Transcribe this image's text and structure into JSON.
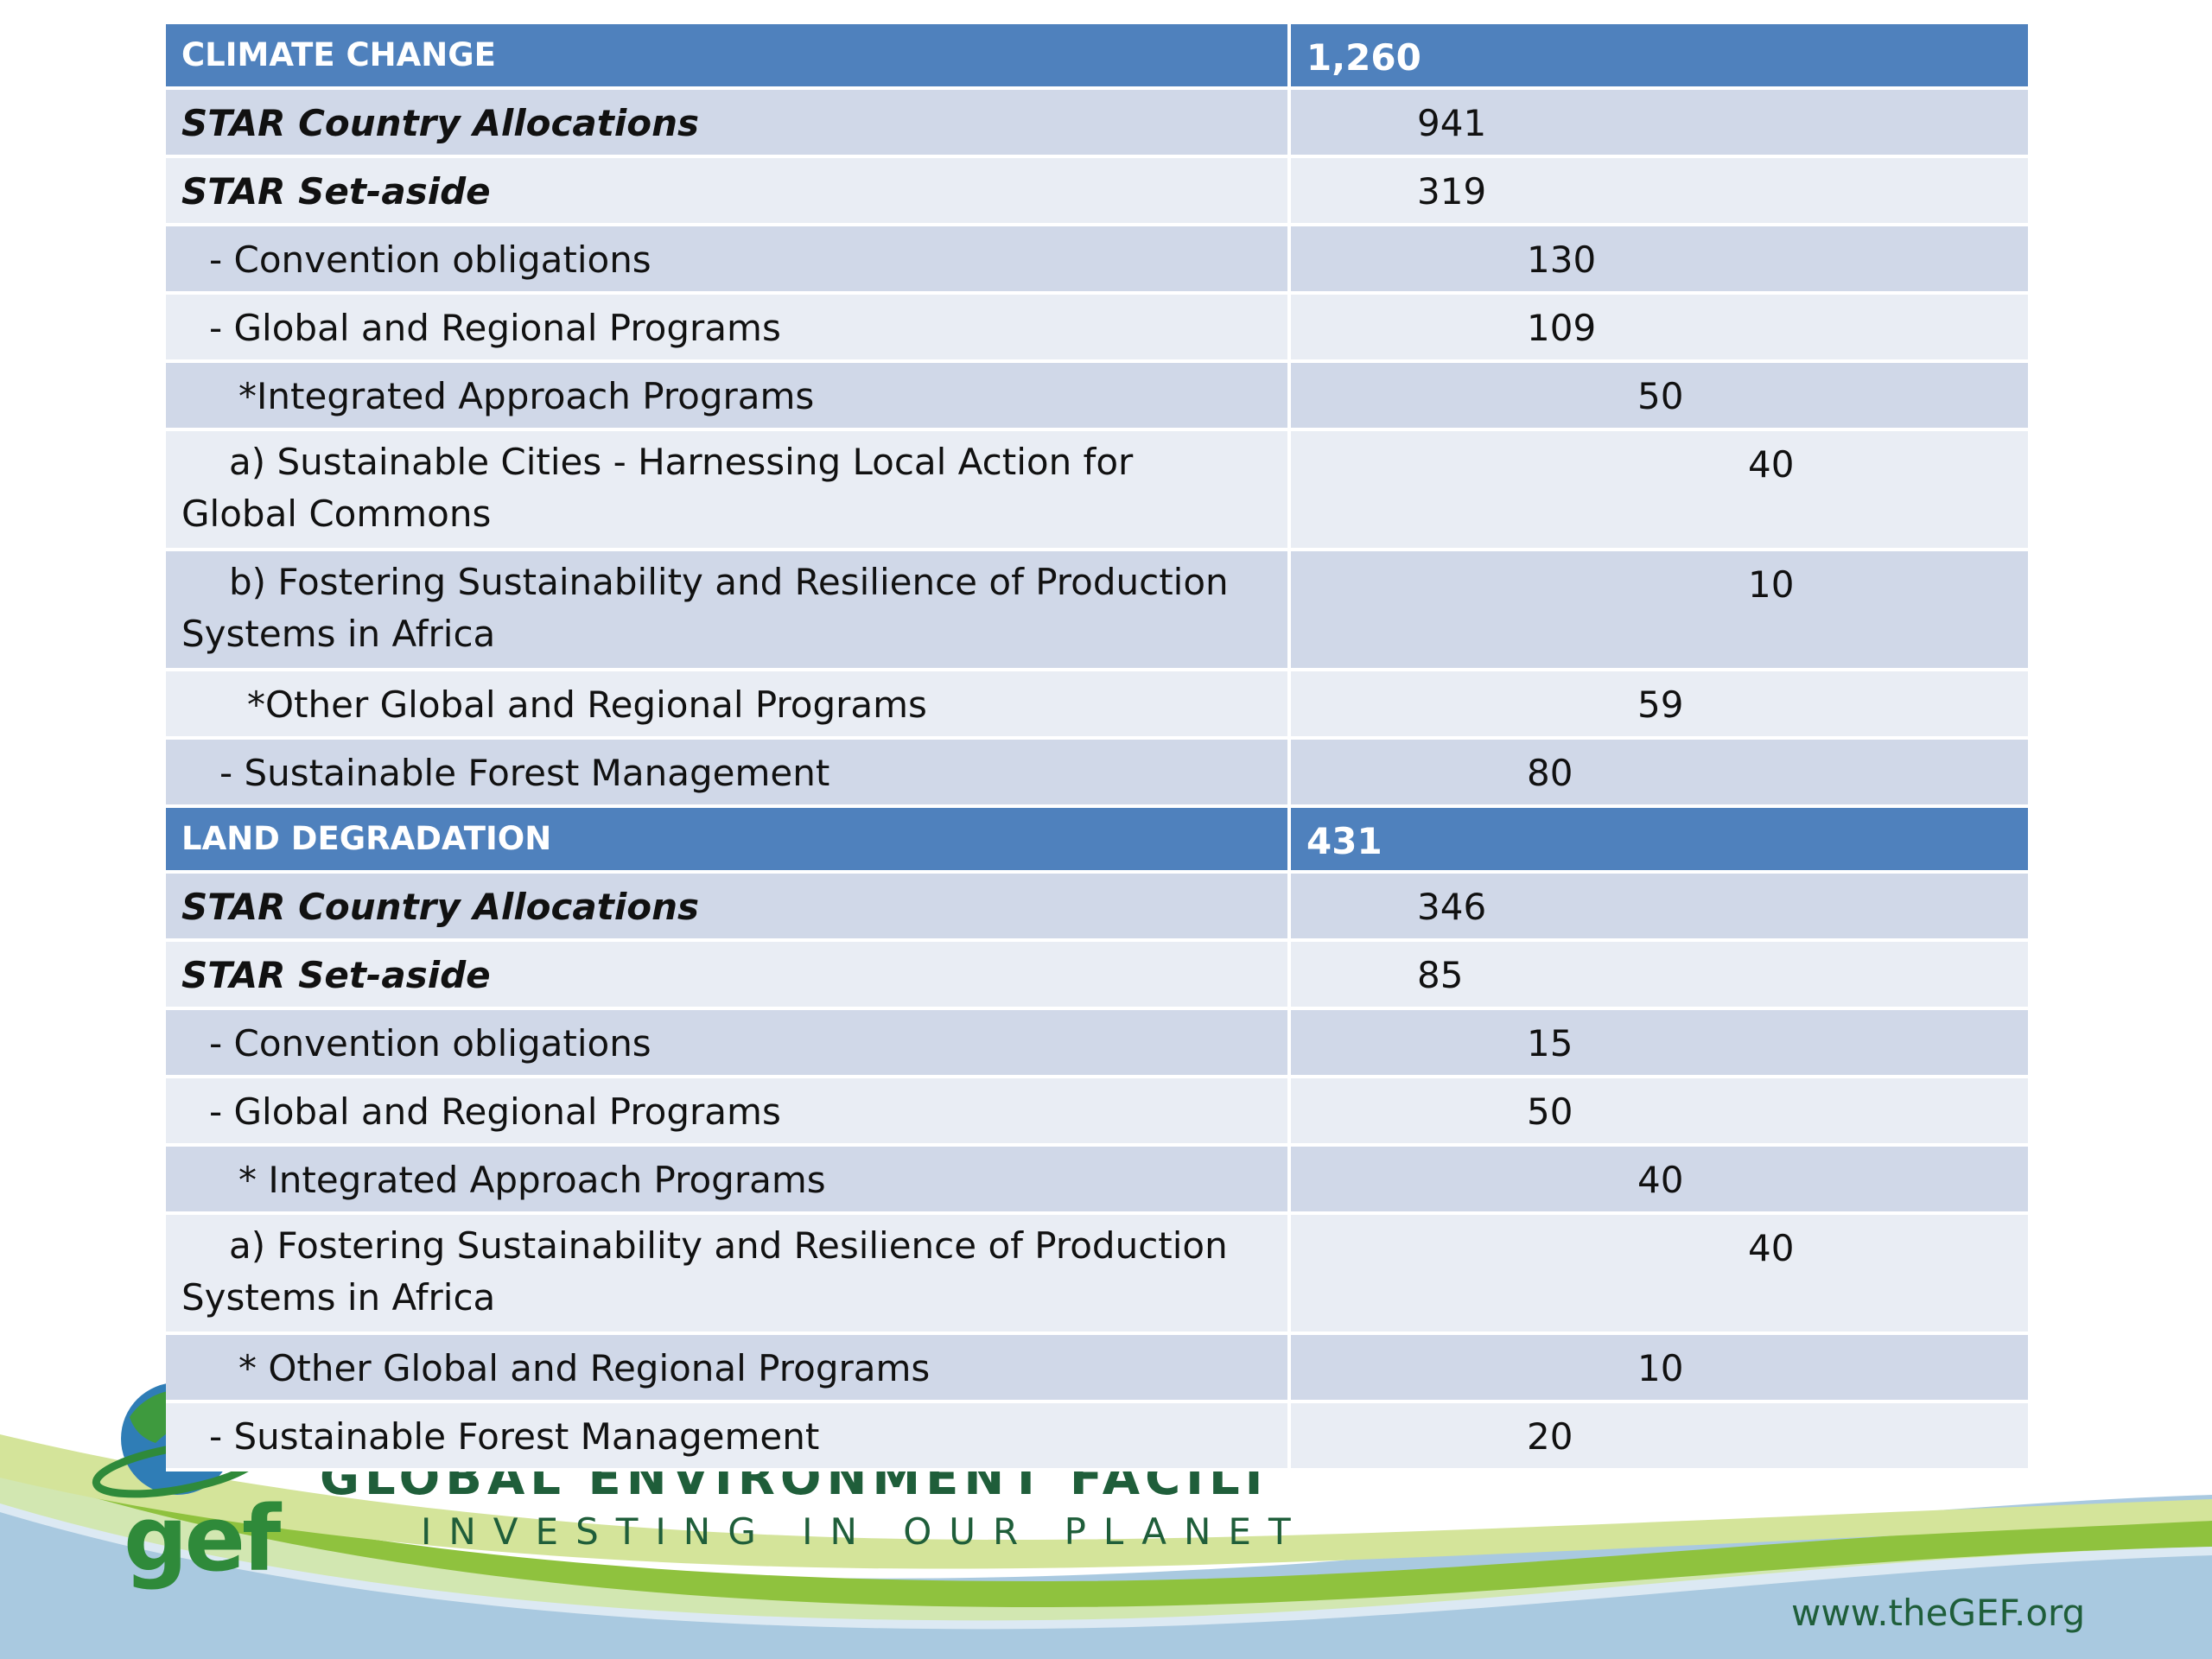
{
  "sections": [
    {
      "title": "CLIMATE CHANGE",
      "total": "1,260",
      "rows": [
        {
          "label": "STAR Country Allocations",
          "value": "941"
        },
        {
          "label": "STAR Set-aside",
          "value": "319"
        },
        {
          "label": "- Convention obligations",
          "value": "130"
        },
        {
          "label": "- Global and Regional Programs",
          "value": "109"
        },
        {
          "label": "*Integrated Approach Programs",
          "value": "50"
        },
        {
          "label": "a) Sustainable Cities - Harnessing Local Action for Global Commons",
          "value": "40"
        },
        {
          "label": "b) Fostering Sustainability and Resilience of Production Systems in Africa",
          "value": "10"
        },
        {
          "label": "*Other Global and Regional Programs",
          "value": "59"
        },
        {
          "label": "- Sustainable Forest Management",
          "value": "80"
        }
      ]
    },
    {
      "title": "LAND DEGRADATION",
      "total": "431",
      "rows": [
        {
          "label": "STAR Country Allocations",
          "value": "346"
        },
        {
          "label": "STAR Set-aside",
          "value": "85"
        },
        {
          "label": "- Convention obligations",
          "value": "15"
        },
        {
          "label": "- Global and Regional Programs",
          "value": "50"
        },
        {
          "label": "* Integrated Approach Programs",
          "value": "40"
        },
        {
          "label": "a) Fostering Sustainability and Resilience of Production Systems in Africa",
          "value": "40"
        },
        {
          "label": "* Other Global and Regional Programs",
          "value": "10"
        },
        {
          "label": "- Sustainable Forest Management",
          "value": "20"
        }
      ]
    }
  ],
  "footer": {
    "logo_text": "gef",
    "org_name": "GLOBAL ENVIRONMENT FACILITY",
    "tagline": "INVESTING IN OUR PLANET",
    "website": "www.theGEF.org"
  },
  "colors": {
    "header_blue": "#4f81bd",
    "row_dark": "#d0d8e8",
    "row_light": "#e9edf4",
    "brand_green": "#2f8a3a"
  }
}
